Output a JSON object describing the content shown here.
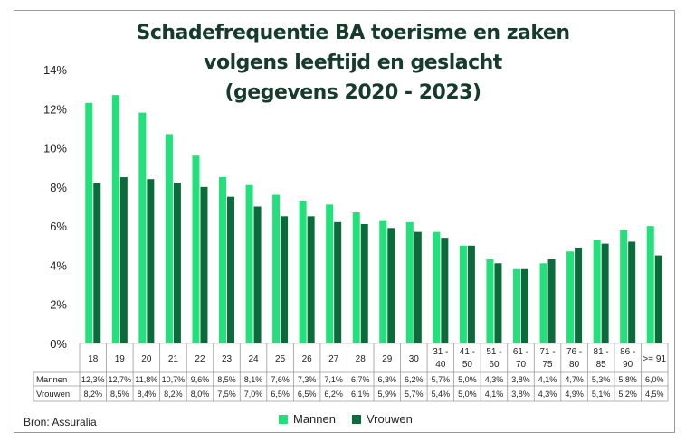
{
  "chart_data": {
    "type": "bar",
    "title_lines": [
      "Schadefrequentie BA toerisme en zaken",
      "volgens leeftijd en geslacht",
      "(gegevens 2020 - 2023)"
    ],
    "categories": [
      [
        "18"
      ],
      [
        "19"
      ],
      [
        "20"
      ],
      [
        "21"
      ],
      [
        "22"
      ],
      [
        "23"
      ],
      [
        "24"
      ],
      [
        "25"
      ],
      [
        "26"
      ],
      [
        "27"
      ],
      [
        "28"
      ],
      [
        "29"
      ],
      [
        "30"
      ],
      [
        "31 -",
        "40"
      ],
      [
        "41 -",
        "50"
      ],
      [
        "51 -",
        "60"
      ],
      [
        "61 -",
        "70"
      ],
      [
        "71 -",
        "75"
      ],
      [
        "76 -",
        "80"
      ],
      [
        "81 -",
        "85"
      ],
      [
        "86 -",
        "90"
      ],
      [
        ">= 91"
      ]
    ],
    "series": [
      {
        "name": "Mannen",
        "color": "#22e07a",
        "values": [
          12.3,
          12.7,
          11.8,
          10.7,
          9.6,
          8.5,
          8.1,
          7.6,
          7.3,
          7.1,
          6.7,
          6.3,
          6.2,
          5.7,
          5.0,
          4.3,
          3.8,
          4.1,
          4.7,
          5.3,
          5.8,
          6.0
        ],
        "labels": [
          "12,3%",
          "12,7%",
          "11,8%",
          "10,7%",
          "9,6%",
          "8,5%",
          "8,1%",
          "7,6%",
          "7,3%",
          "7,1%",
          "6,7%",
          "6,3%",
          "6,2%",
          "5,7%",
          "5,0%",
          "4,3%",
          "3,8%",
          "4,1%",
          "4,7%",
          "5,3%",
          "5,8%",
          "6,0%"
        ]
      },
      {
        "name": "Vrouwen",
        "color": "#0b6b3a",
        "values": [
          8.2,
          8.5,
          8.4,
          8.2,
          8.0,
          7.5,
          7.0,
          6.5,
          6.5,
          6.2,
          6.1,
          5.9,
          5.7,
          5.4,
          5.0,
          4.1,
          3.8,
          4.3,
          4.9,
          5.1,
          5.2,
          4.5
        ],
        "labels": [
          "8,2%",
          "8,5%",
          "8,4%",
          "8,2%",
          "8,0%",
          "7,5%",
          "7,0%",
          "6,5%",
          "6,5%",
          "6,2%",
          "6,1%",
          "5,9%",
          "5,7%",
          "5,4%",
          "5,0%",
          "4,1%",
          "3,8%",
          "4,3%",
          "4,9%",
          "5,1%",
          "5,2%",
          "4,5%"
        ]
      }
    ],
    "ylim": [
      0,
      14
    ],
    "yticks": [
      "0%",
      "2%",
      "4%",
      "6%",
      "8%",
      "10%",
      "12%",
      "14%"
    ],
    "source": "Bron: Assuralia"
  }
}
